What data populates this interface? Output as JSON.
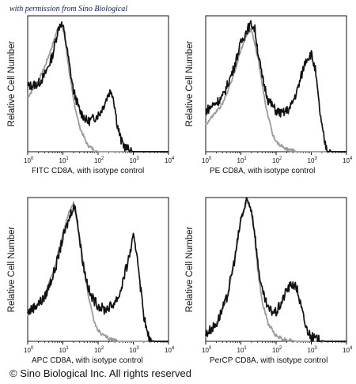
{
  "watermark": "with permission from Sino Biological",
  "copyright": "© Sino Biological Inc. All rights reserved",
  "colors": {
    "sample": "#111111",
    "isotype": "#9a9a9a"
  },
  "chart_data": [
    {
      "type": "line",
      "xlabel": "FITC CD8A, with isotype control",
      "ylabel": "Relative Cell Number",
      "xscale": "log",
      "xlim": [
        1,
        10000
      ],
      "ylim": [
        0,
        1
      ],
      "x_ticks": [
        "10",
        "10",
        "10",
        "10",
        "10"
      ],
      "x_tick_exponents": [
        "0",
        "1",
        "2",
        "3",
        "4"
      ],
      "series": [
        {
          "key": "sample",
          "x": [
            1,
            2,
            3,
            5,
            7,
            8.5,
            10,
            12,
            15,
            20,
            30,
            50,
            80,
            110,
            150,
            200,
            240,
            280,
            350,
            450,
            600,
            800,
            1000,
            1500,
            10000
          ],
          "y": [
            0.48,
            0.5,
            0.56,
            0.7,
            0.88,
            0.95,
            0.92,
            0.82,
            0.65,
            0.45,
            0.3,
            0.22,
            0.25,
            0.28,
            0.35,
            0.43,
            0.45,
            0.38,
            0.2,
            0.08,
            0.03,
            0.01,
            0,
            0,
            0
          ]
        },
        {
          "key": "isotype",
          "x": [
            1,
            2,
            3,
            5,
            7,
            9,
            11,
            15,
            20,
            30,
            50,
            80,
            100,
            10000
          ],
          "y": [
            0.4,
            0.52,
            0.62,
            0.78,
            0.9,
            0.94,
            0.86,
            0.6,
            0.38,
            0.18,
            0.05,
            0.01,
            0,
            0
          ]
        }
      ]
    },
    {
      "type": "line",
      "xlabel": "PE CD8A, with isotype control",
      "ylabel": "Relative Cell Number",
      "xscale": "log",
      "xlim": [
        1,
        10000
      ],
      "ylim": [
        0,
        1
      ],
      "x_ticks": [
        "10",
        "10",
        "10",
        "10",
        "10"
      ],
      "x_tick_exponents": [
        "0",
        "1",
        "2",
        "3",
        "4"
      ],
      "series": [
        {
          "key": "sample",
          "x": [
            1,
            3,
            6,
            10,
            15,
            20,
            25,
            30,
            40,
            60,
            100,
            150,
            250,
            400,
            700,
            1000,
            1300,
            1600,
            2000,
            2500,
            3000,
            4000,
            10000
          ],
          "y": [
            0.3,
            0.4,
            0.6,
            0.8,
            0.9,
            0.94,
            0.9,
            0.75,
            0.55,
            0.38,
            0.3,
            0.28,
            0.32,
            0.45,
            0.68,
            0.72,
            0.6,
            0.38,
            0.18,
            0.05,
            0.01,
            0,
            0
          ]
        },
        {
          "key": "isotype",
          "x": [
            1,
            3,
            6,
            10,
            15,
            20,
            30,
            50,
            80,
            120,
            200,
            400,
            10000
          ],
          "y": [
            0.2,
            0.35,
            0.55,
            0.75,
            0.87,
            0.9,
            0.7,
            0.35,
            0.12,
            0.05,
            0.02,
            0,
            0
          ]
        }
      ]
    },
    {
      "type": "line",
      "xlabel": "APC CD8A, with isotype control",
      "ylabel": "Relative Cell Number",
      "xscale": "log",
      "xlim": [
        1,
        10000
      ],
      "ylim": [
        0,
        1
      ],
      "x_ticks": [
        "10",
        "10",
        "10",
        "10",
        "10"
      ],
      "x_tick_exponents": [
        "0",
        "1",
        "2",
        "3",
        "4"
      ],
      "series": [
        {
          "key": "sample",
          "x": [
            1,
            3,
            6,
            10,
            15,
            20,
            25,
            30,
            40,
            60,
            100,
            150,
            250,
            400,
            700,
            1000,
            1300,
            1600,
            2000,
            2500,
            3000,
            4000,
            10000
          ],
          "y": [
            0.2,
            0.3,
            0.5,
            0.72,
            0.85,
            0.95,
            0.88,
            0.7,
            0.5,
            0.32,
            0.25,
            0.22,
            0.25,
            0.32,
            0.55,
            0.72,
            0.6,
            0.38,
            0.18,
            0.05,
            0.01,
            0,
            0
          ]
        },
        {
          "key": "isotype",
          "x": [
            1,
            3,
            6,
            10,
            15,
            20,
            30,
            50,
            80,
            120,
            200,
            400,
            10000
          ],
          "y": [
            0.18,
            0.32,
            0.52,
            0.75,
            0.9,
            0.96,
            0.72,
            0.35,
            0.12,
            0.05,
            0.02,
            0,
            0
          ]
        }
      ]
    },
    {
      "type": "line",
      "xlabel": "PerCP CD8A, with isotype control",
      "ylabel": "Relative Cell Number",
      "xscale": "log",
      "xlim": [
        1,
        10000
      ],
      "ylim": [
        0,
        1
      ],
      "x_ticks": [
        "10",
        "10",
        "10",
        "10",
        "10"
      ],
      "x_tick_exponents": [
        "0",
        "1",
        "2",
        "3",
        "4"
      ],
      "series": [
        {
          "key": "sample",
          "x": [
            1,
            2,
            4,
            7,
            10,
            15,
            20,
            25,
            30,
            40,
            60,
            100,
            150,
            200,
            300,
            400,
            500,
            700,
            1000,
            1500,
            2500,
            10000
          ],
          "y": [
            0.05,
            0.12,
            0.3,
            0.6,
            0.85,
            0.98,
            0.92,
            0.75,
            0.55,
            0.35,
            0.22,
            0.2,
            0.28,
            0.36,
            0.4,
            0.36,
            0.25,
            0.1,
            0.03,
            0.01,
            0,
            0
          ]
        },
        {
          "key": "isotype",
          "x": [
            1,
            2,
            4,
            7,
            10,
            15,
            20,
            25,
            30,
            40,
            60,
            100,
            150,
            200,
            400,
            10000
          ],
          "y": [
            0.05,
            0.12,
            0.3,
            0.6,
            0.85,
            0.98,
            0.9,
            0.72,
            0.5,
            0.28,
            0.12,
            0.04,
            0.02,
            0.01,
            0,
            0
          ]
        }
      ]
    }
  ]
}
